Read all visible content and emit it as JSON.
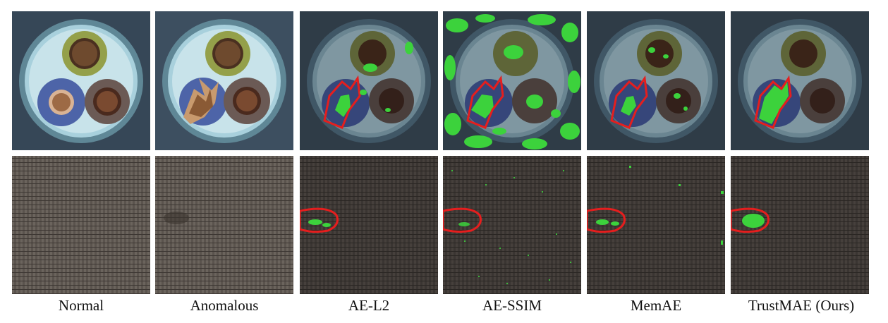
{
  "figure": {
    "columns": [
      {
        "label": "Normal",
        "overlay": "none"
      },
      {
        "label": "Anomalous",
        "overlay": "none"
      },
      {
        "label": "AE-L2",
        "overlay": "sparse"
      },
      {
        "label": "AE-SSIM",
        "overlay": "heavy"
      },
      {
        "label": "MemAE",
        "overlay": "medium"
      },
      {
        "label": "TrustMAE (Ours)",
        "overlay": "focused"
      }
    ],
    "rows": [
      {
        "name": "cable"
      },
      {
        "name": "carpet"
      }
    ]
  },
  "colors": {
    "detection": "#3cd23c",
    "ground_truth_outline": "#e51e1e",
    "cable_background": "#3b4d5e",
    "carpet_background": "#48423d"
  }
}
